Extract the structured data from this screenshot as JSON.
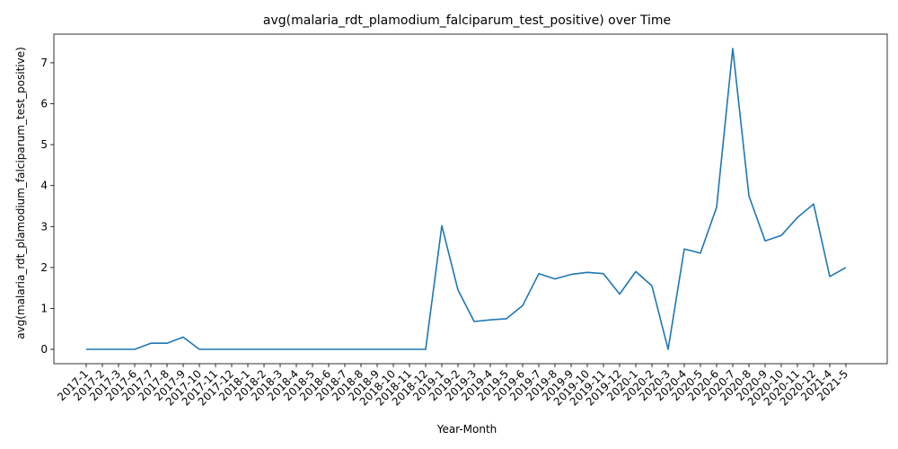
{
  "chart_data": {
    "type": "line",
    "title": "avg(malaria_rdt_plamodium_falciparum_test_positive) over Time",
    "xlabel": "Year-Month",
    "ylabel": "avg(malaria_rdt_plamodium_falciparum_test_positive)",
    "ylim": [
      -0.35,
      7.7
    ],
    "yticks": [
      0,
      1,
      2,
      3,
      4,
      5,
      6,
      7
    ],
    "grid": false,
    "legend": "none",
    "line_color": "#1f77b4",
    "categories": [
      "2017-1",
      "2017-2",
      "2017-3",
      "2017-6",
      "2017-7",
      "2017-8",
      "2017-9",
      "2017-10",
      "2017-11",
      "2017-12",
      "2018-1",
      "2018-2",
      "2018-3",
      "2018-4",
      "2018-5",
      "2018-6",
      "2018-7",
      "2018-8",
      "2018-9",
      "2018-10",
      "2018-11",
      "2018-12",
      "2019-1",
      "2019-2",
      "2019-3",
      "2019-4",
      "2019-5",
      "2019-6",
      "2019-7",
      "2019-8",
      "2019-9",
      "2019-10",
      "2019-11",
      "2019-12",
      "2020-1",
      "2020-2",
      "2020-3",
      "2020-4",
      "2020-5",
      "2020-6",
      "2020-7",
      "2020-8",
      "2020-9",
      "2020-10",
      "2020-11",
      "2020-12",
      "2021-4",
      "2021-5"
    ],
    "values": [
      0,
      0,
      0,
      0,
      0.15,
      0.15,
      0.3,
      0,
      0,
      0,
      0,
      0,
      0,
      0,
      0,
      0,
      0,
      0,
      0,
      0,
      0,
      0,
      3.02,
      1.45,
      0.68,
      0.72,
      0.75,
      1.07,
      1.85,
      1.72,
      1.83,
      1.88,
      1.85,
      1.35,
      1.9,
      1.55,
      0,
      2.45,
      2.35,
      3.47,
      7.35,
      3.75,
      2.65,
      2.78,
      3.22,
      3.55,
      1.78,
      2.0
    ]
  }
}
